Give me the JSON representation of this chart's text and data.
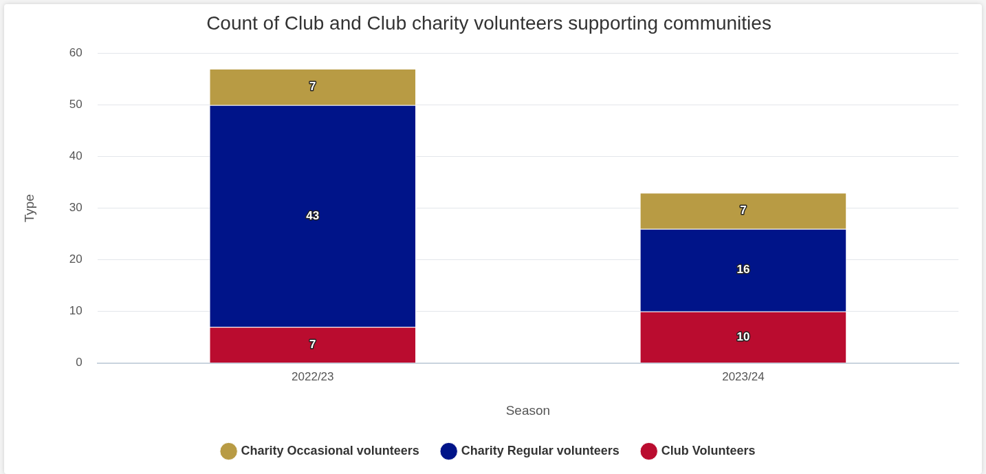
{
  "chart_data": {
    "type": "bar",
    "title": "Count of Club and Club charity volunteers supporting communities",
    "xlabel": "Season",
    "ylabel": "Type",
    "categories": [
      "2022/23",
      "2023/24"
    ],
    "series": [
      {
        "name": "Club Volunteers",
        "color": "#ba0c2f",
        "values": [
          7,
          10
        ]
      },
      {
        "name": "Charity Regular volunteers",
        "color": "#001489",
        "values": [
          43,
          16
        ]
      },
      {
        "name": "Charity Occasional volunteers",
        "color": "#b89b44",
        "values": [
          7,
          7
        ]
      }
    ],
    "stacked": true,
    "ylim": [
      0,
      60
    ],
    "yticks": [
      0,
      10,
      20,
      30,
      40,
      50,
      60
    ],
    "grid": "y",
    "legend": "bottom",
    "data_labels": true
  }
}
